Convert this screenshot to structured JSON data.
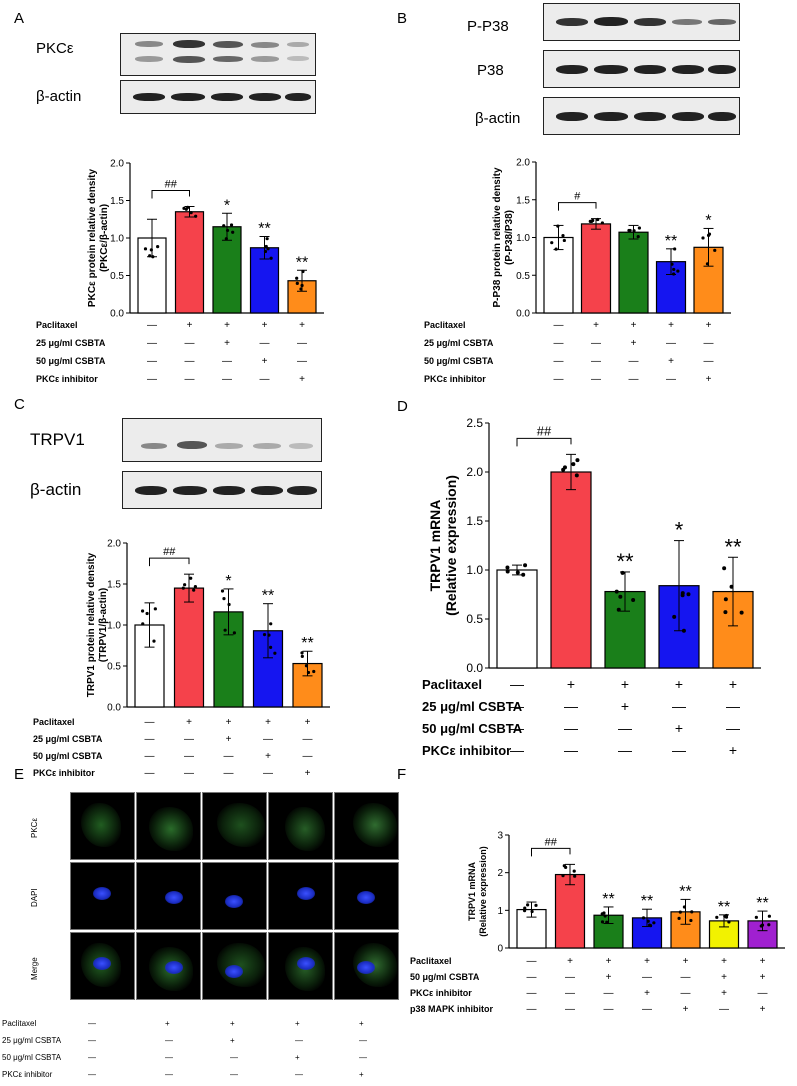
{
  "panels": {
    "A": {
      "letter": "A",
      "blots": [
        "PKCε",
        "β-actin"
      ]
    },
    "B": {
      "letter": "B",
      "blots": [
        "P-P38",
        "P38",
        "β-actin"
      ]
    },
    "C": {
      "letter": "C",
      "blots": [
        "TRPV1",
        "β-actin"
      ]
    },
    "D": {
      "letter": "D"
    },
    "E": {
      "letter": "E",
      "rows": [
        "PKCε",
        "DAPI",
        "Merge"
      ]
    },
    "F": {
      "letter": "F"
    }
  },
  "chart_data": [
    {
      "id": "A",
      "type": "bar",
      "ylabel": "PKCε protein relative density (PKCε/β-actin)",
      "ylim": [
        0,
        2.0
      ],
      "yticks": [
        "0.0",
        "0.5",
        "1.0",
        "1.5",
        "2.0"
      ],
      "values": [
        1.0,
        1.35,
        1.15,
        0.87,
        0.43
      ],
      "errors": [
        0.25,
        0.07,
        0.18,
        0.15,
        0.14
      ],
      "sig": [
        "",
        "##",
        "*",
        "**",
        "**"
      ],
      "bracket": "##",
      "colors": [
        "#ffffff",
        "#f5424b",
        "#1a7f1a",
        "#1515f0",
        "#ff8c1a"
      ],
      "conditions": [
        {
          "label": "Paclitaxel",
          "marks": [
            "—",
            "+",
            "+",
            "+",
            "+"
          ]
        },
        {
          "label": "25 μg/ml CSBTA",
          "marks": [
            "—",
            "—",
            "+",
            "—",
            "—"
          ]
        },
        {
          "label": "50 μg/ml CSBTA",
          "marks": [
            "—",
            "—",
            "—",
            "+",
            "—"
          ]
        },
        {
          "label": "PKCε inhibitor",
          "marks": [
            "—",
            "—",
            "—",
            "—",
            "+"
          ]
        }
      ]
    },
    {
      "id": "B",
      "type": "bar",
      "ylabel": "P-P38 protein relative density (P-P38/P38)",
      "ylim": [
        0,
        2.0
      ],
      "yticks": [
        "0.0",
        "0.5",
        "1.0",
        "1.5",
        "2.0"
      ],
      "values": [
        1.0,
        1.18,
        1.07,
        0.68,
        0.87
      ],
      "errors": [
        0.16,
        0.07,
        0.09,
        0.17,
        0.25
      ],
      "sig": [
        "",
        "#",
        "",
        "**",
        "*"
      ],
      "bracket": "#",
      "colors": [
        "#ffffff",
        "#f5424b",
        "#1a7f1a",
        "#1515f0",
        "#ff8c1a"
      ],
      "conditions": [
        {
          "label": "Paclitaxel",
          "marks": [
            "—",
            "+",
            "+",
            "+",
            "+"
          ]
        },
        {
          "label": "25 μg/ml CSBTA",
          "marks": [
            "—",
            "—",
            "+",
            "—",
            "—"
          ]
        },
        {
          "label": "50 μg/ml CSBTA",
          "marks": [
            "—",
            "—",
            "—",
            "+",
            "—"
          ]
        },
        {
          "label": "PKCε inhibitor",
          "marks": [
            "—",
            "—",
            "—",
            "—",
            "+"
          ]
        }
      ]
    },
    {
      "id": "C",
      "type": "bar",
      "ylabel": "TRPV1 protein relative density (TRPV1/β-actin)",
      "ylim": [
        0,
        2.0
      ],
      "yticks": [
        "0.0",
        "0.5",
        "1.0",
        "1.5",
        "2.0"
      ],
      "values": [
        1.0,
        1.45,
        1.16,
        0.93,
        0.53
      ],
      "errors": [
        0.27,
        0.17,
        0.28,
        0.33,
        0.15
      ],
      "sig": [
        "",
        "##",
        "*",
        "**",
        "**"
      ],
      "bracket": "##",
      "colors": [
        "#ffffff",
        "#f5424b",
        "#1a7f1a",
        "#1515f0",
        "#ff8c1a"
      ],
      "conditions": [
        {
          "label": "Paclitaxel",
          "marks": [
            "—",
            "+",
            "+",
            "+",
            "+"
          ]
        },
        {
          "label": "25 μg/ml CSBTA",
          "marks": [
            "—",
            "—",
            "+",
            "—",
            "—"
          ]
        },
        {
          "label": "50 μg/ml CSBTA",
          "marks": [
            "—",
            "—",
            "—",
            "+",
            "—"
          ]
        },
        {
          "label": "PKCε inhibitor",
          "marks": [
            "—",
            "—",
            "—",
            "—",
            "+"
          ]
        }
      ]
    },
    {
      "id": "D",
      "type": "bar",
      "ylabel": "TRPV1 mRNA (Relative expression)",
      "ylim": [
        0,
        2.5
      ],
      "yticks": [
        "0.0",
        "0.5",
        "1.0",
        "1.5",
        "2.0",
        "2.5"
      ],
      "values": [
        1.0,
        2.0,
        0.78,
        0.84,
        0.78
      ],
      "errors": [
        0.05,
        0.18,
        0.2,
        0.46,
        0.35
      ],
      "sig": [
        "",
        "##",
        "**",
        "*",
        "**"
      ],
      "bracket": "##",
      "colors": [
        "#ffffff",
        "#f5424b",
        "#1a7f1a",
        "#1515f0",
        "#ff8c1a"
      ],
      "conditions": [
        {
          "label": "Paclitaxel",
          "marks": [
            "—",
            "+",
            "+",
            "+",
            "+"
          ]
        },
        {
          "label": "25 μg/ml CSBTA",
          "marks": [
            "—",
            "—",
            "+",
            "—",
            "—"
          ]
        },
        {
          "label": "50 μg/ml CSBTA",
          "marks": [
            "—",
            "—",
            "—",
            "+",
            "—"
          ]
        },
        {
          "label": "PKCε inhibitor",
          "marks": [
            "—",
            "—",
            "—",
            "—",
            "+"
          ]
        }
      ]
    },
    {
      "id": "F",
      "type": "bar",
      "ylabel": "TRPV1 mRNA (Relative expression)",
      "ylim": [
        0,
        3
      ],
      "yticks": [
        "0",
        "1",
        "2",
        "3"
      ],
      "values": [
        1.02,
        1.95,
        0.87,
        0.8,
        0.96,
        0.72,
        0.72
      ],
      "errors": [
        0.2,
        0.27,
        0.22,
        0.23,
        0.33,
        0.16,
        0.26
      ],
      "sig": [
        "",
        "##",
        "**",
        "**",
        "**",
        "**",
        "**"
      ],
      "bracket": "##",
      "colors": [
        "#ffffff",
        "#f5424b",
        "#1a7f1a",
        "#1515f0",
        "#ff8c1a",
        "#f2f200",
        "#a020d0"
      ],
      "conditions": [
        {
          "label": "Paclitaxel",
          "marks": [
            "—",
            "+",
            "+",
            "+",
            "+",
            "+",
            "+"
          ]
        },
        {
          "label": "50 μg/ml CSBTA",
          "marks": [
            "—",
            "—",
            "+",
            "—",
            "—",
            "+",
            "+"
          ]
        },
        {
          "label": "PKCε inhibitor",
          "marks": [
            "—",
            "—",
            "—",
            "+",
            "—",
            "+",
            "—"
          ]
        },
        {
          "label": "p38 MAPK inhibitor",
          "marks": [
            "—",
            "—",
            "—",
            "—",
            "+",
            "—",
            "+"
          ]
        }
      ]
    }
  ],
  "panelE": {
    "conditions": [
      {
        "label": "Paclitaxel",
        "marks": [
          "—",
          "+",
          "+",
          "+",
          "+"
        ]
      },
      {
        "label": "25 μg/ml CSBTA",
        "marks": [
          "—",
          "—",
          "+",
          "—",
          "—"
        ]
      },
      {
        "label": "50 μg/ml CSBTA",
        "marks": [
          "—",
          "—",
          "—",
          "+",
          "—"
        ]
      },
      {
        "label": "PKCε inhibitor",
        "marks": [
          "—",
          "—",
          "—",
          "—",
          "+"
        ]
      }
    ]
  }
}
